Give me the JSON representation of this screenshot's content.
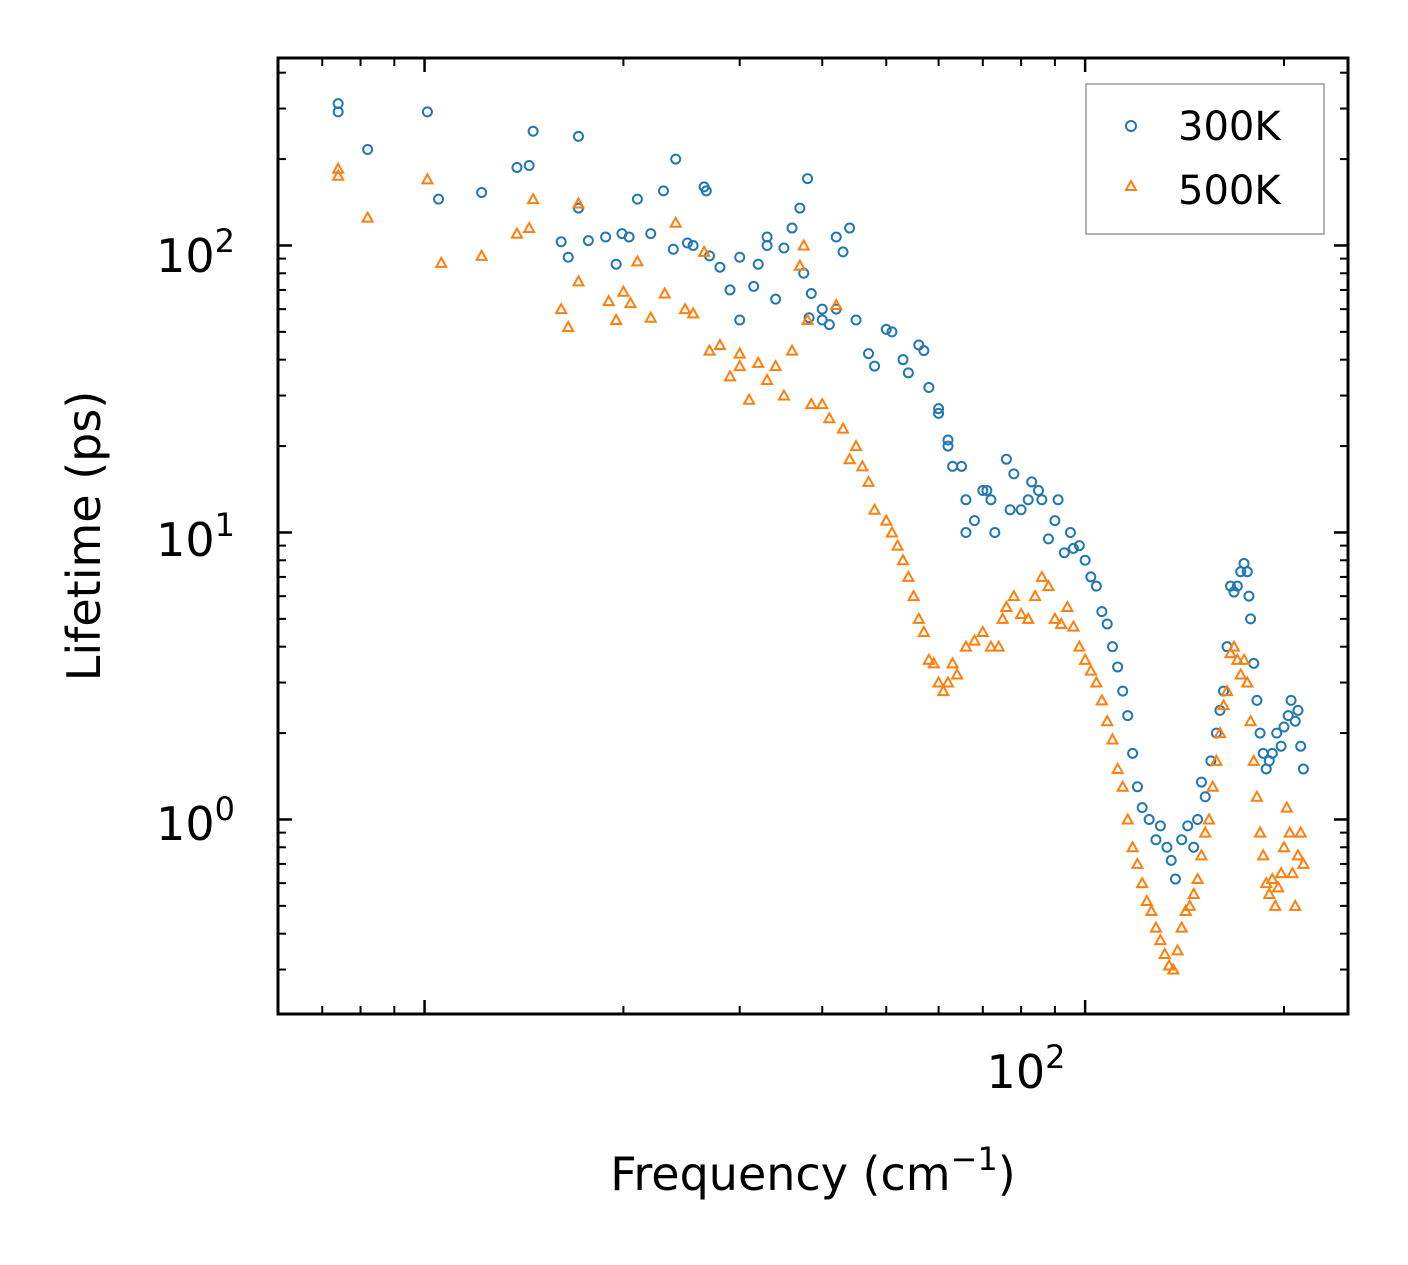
{
  "chart_data": {
    "type": "scatter",
    "xscale": "log",
    "yscale": "log",
    "xlim": [
      6,
      250
    ],
    "ylim": [
      0.21,
      450
    ],
    "xlabel": "Frequency (cm",
    "xlabel_sup": "−1",
    "xlabel_end": ")",
    "ylabel": "Lifetime (ps)",
    "x_major_ticks": [
      {
        "base": "10",
        "exp": "2",
        "value": 100
      }
    ],
    "y_major_ticks": [
      {
        "base": "10",
        "exp": "0",
        "value": 1
      },
      {
        "base": "10",
        "exp": "1",
        "value": 10
      },
      {
        "base": "10",
        "exp": "2",
        "value": 100
      }
    ],
    "legend_position": "top-right",
    "series": [
      {
        "name": "300K",
        "marker": "circle",
        "color": "#1f77b4",
        "points": [
          [
            7.4,
            312
          ],
          [
            7.4,
            292
          ],
          [
            8.2,
            216
          ],
          [
            10.1,
            292
          ],
          [
            10.5,
            145
          ],
          [
            12.2,
            153
          ],
          [
            13.8,
            187
          ],
          [
            14.4,
            190
          ],
          [
            14.6,
            250
          ],
          [
            16.1,
            103
          ],
          [
            16.5,
            91
          ],
          [
            17.1,
            135
          ],
          [
            17.1,
            240
          ],
          [
            17.7,
            104
          ],
          [
            18.8,
            107
          ],
          [
            19.5,
            86
          ],
          [
            19.9,
            110
          ],
          [
            20.4,
            107
          ],
          [
            21,
            145
          ],
          [
            22,
            110
          ],
          [
            23,
            155
          ],
          [
            23.8,
            97
          ],
          [
            24,
            200
          ],
          [
            25,
            102
          ],
          [
            25.5,
            100
          ],
          [
            26.5,
            160
          ],
          [
            26.7,
            155
          ],
          [
            27,
            92
          ],
          [
            28,
            84
          ],
          [
            29,
            70
          ],
          [
            30,
            91
          ],
          [
            30,
            55
          ],
          [
            31.5,
            72
          ],
          [
            32,
            86
          ],
          [
            33,
            100
          ],
          [
            33,
            107
          ],
          [
            34,
            65
          ],
          [
            35,
            98
          ],
          [
            36,
            115
          ],
          [
            37,
            135
          ],
          [
            37.5,
            80
          ],
          [
            38,
            171
          ],
          [
            38.2,
            56
          ],
          [
            38.5,
            68
          ],
          [
            40,
            60
          ],
          [
            40,
            55
          ],
          [
            41,
            53
          ],
          [
            42,
            60
          ],
          [
            42,
            107
          ],
          [
            43,
            95
          ],
          [
            44,
            115
          ],
          [
            45,
            55
          ],
          [
            47,
            42
          ],
          [
            48,
            38
          ],
          [
            50,
            51
          ],
          [
            51,
            50
          ],
          [
            53,
            40
          ],
          [
            54,
            36
          ],
          [
            56,
            45
          ],
          [
            57,
            43
          ],
          [
            58,
            32
          ],
          [
            60,
            26
          ],
          [
            60,
            27
          ],
          [
            62,
            21
          ],
          [
            62,
            20
          ],
          [
            63,
            17
          ],
          [
            65,
            17
          ],
          [
            66,
            13
          ],
          [
            66,
            10
          ],
          [
            68,
            11
          ],
          [
            70,
            14
          ],
          [
            71,
            14
          ],
          [
            72,
            13
          ],
          [
            73,
            10
          ],
          [
            76,
            18
          ],
          [
            77,
            12
          ],
          [
            78,
            16
          ],
          [
            80,
            12
          ],
          [
            82,
            13
          ],
          [
            83,
            15
          ],
          [
            85,
            14
          ],
          [
            86,
            13
          ],
          [
            88,
            9.5
          ],
          [
            90,
            11
          ],
          [
            91,
            13
          ],
          [
            93,
            8.5
          ],
          [
            95,
            10
          ],
          [
            96,
            8.8
          ],
          [
            98,
            9
          ],
          [
            100,
            8
          ],
          [
            102,
            7
          ],
          [
            104,
            6.5
          ],
          [
            106,
            5.3
          ],
          [
            108,
            4.8
          ],
          [
            110,
            4
          ],
          [
            112,
            3.4
          ],
          [
            114,
            2.8
          ],
          [
            116,
            2.3
          ],
          [
            118,
            1.7
          ],
          [
            120,
            1.3
          ],
          [
            122,
            1.1
          ],
          [
            125,
            1
          ],
          [
            128,
            0.85
          ],
          [
            130,
            0.95
          ],
          [
            133,
            0.8
          ],
          [
            135,
            0.72
          ],
          [
            137,
            0.62
          ],
          [
            140,
            0.85
          ],
          [
            143,
            0.95
          ],
          [
            146,
            0.8
          ],
          [
            148,
            1
          ],
          [
            150,
            1.35
          ],
          [
            152,
            1.2
          ],
          [
            155,
            1.6
          ],
          [
            158,
            2
          ],
          [
            160,
            2.4
          ],
          [
            162,
            2.8
          ],
          [
            164,
            4
          ],
          [
            166,
            6.5
          ],
          [
            168,
            6.2
          ],
          [
            170,
            6.5
          ],
          [
            172,
            7.3
          ],
          [
            174,
            7.8
          ],
          [
            176,
            7.3
          ],
          [
            177,
            6
          ],
          [
            178,
            5
          ],
          [
            180,
            3.5
          ],
          [
            182,
            2.6
          ],
          [
            184,
            2
          ],
          [
            186,
            1.7
          ],
          [
            188,
            1.5
          ],
          [
            190,
            1.6
          ],
          [
            192,
            1.7
          ],
          [
            195,
            2
          ],
          [
            198,
            1.8
          ],
          [
            200,
            2.1
          ],
          [
            203,
            2.3
          ],
          [
            205,
            2.6
          ],
          [
            208,
            2.2
          ],
          [
            210,
            2.4
          ],
          [
            212,
            1.8
          ],
          [
            214,
            1.5
          ]
        ]
      },
      {
        "name": "500K",
        "marker": "triangle",
        "color": "#ff7f0e",
        "points": [
          [
            7.4,
            185
          ],
          [
            7.4,
            175
          ],
          [
            8.2,
            125
          ],
          [
            10.1,
            170
          ],
          [
            10.6,
            87
          ],
          [
            12.2,
            92
          ],
          [
            13.8,
            110
          ],
          [
            14.4,
            115
          ],
          [
            14.6,
            145
          ],
          [
            16.1,
            60
          ],
          [
            16.5,
            52
          ],
          [
            17.1,
            75
          ],
          [
            17.1,
            140
          ],
          [
            19,
            64
          ],
          [
            19.5,
            55
          ],
          [
            20,
            69
          ],
          [
            20.5,
            63
          ],
          [
            21,
            88
          ],
          [
            22,
            56
          ],
          [
            23.1,
            68
          ],
          [
            24,
            120
          ],
          [
            24.8,
            60
          ],
          [
            25.5,
            58
          ],
          [
            26.5,
            95
          ],
          [
            27,
            43
          ],
          [
            28,
            45
          ],
          [
            29,
            35
          ],
          [
            30,
            38
          ],
          [
            30,
            42
          ],
          [
            31,
            29
          ],
          [
            32,
            39
          ],
          [
            33,
            34
          ],
          [
            34,
            38
          ],
          [
            35,
            30
          ],
          [
            36,
            43
          ],
          [
            37,
            85
          ],
          [
            37.5,
            100
          ],
          [
            38,
            55
          ],
          [
            38.5,
            28
          ],
          [
            40,
            28
          ],
          [
            41,
            25
          ],
          [
            42,
            62
          ],
          [
            43,
            23
          ],
          [
            44,
            18
          ],
          [
            45,
            20
          ],
          [
            46,
            17
          ],
          [
            47,
            15
          ],
          [
            48,
            12
          ],
          [
            50,
            11
          ],
          [
            51,
            10
          ],
          [
            52,
            9
          ],
          [
            53,
            8
          ],
          [
            54,
            7
          ],
          [
            55,
            6
          ],
          [
            56,
            5
          ],
          [
            57,
            4.5
          ],
          [
            58,
            3.6
          ],
          [
            59,
            3.5
          ],
          [
            60,
            3
          ],
          [
            61,
            2.8
          ],
          [
            62,
            3
          ],
          [
            63,
            3.5
          ],
          [
            64,
            3.2
          ],
          [
            66,
            4
          ],
          [
            68,
            4.2
          ],
          [
            70,
            4.5
          ],
          [
            72,
            4
          ],
          [
            74,
            4
          ],
          [
            75,
            5
          ],
          [
            76,
            5.5
          ],
          [
            78,
            6
          ],
          [
            80,
            5.2
          ],
          [
            82,
            5
          ],
          [
            84,
            6
          ],
          [
            86,
            7
          ],
          [
            88,
            6.5
          ],
          [
            90,
            5
          ],
          [
            92,
            4.8
          ],
          [
            94,
            5.5
          ],
          [
            96,
            4.7
          ],
          [
            98,
            4
          ],
          [
            100,
            3.6
          ],
          [
            102,
            3.3
          ],
          [
            104,
            3
          ],
          [
            106,
            2.6
          ],
          [
            108,
            2.2
          ],
          [
            110,
            1.9
          ],
          [
            112,
            1.5
          ],
          [
            114,
            1.3
          ],
          [
            116,
            1
          ],
          [
            118,
            0.8
          ],
          [
            120,
            0.7
          ],
          [
            122,
            0.6
          ],
          [
            124,
            0.52
          ],
          [
            126,
            0.48
          ],
          [
            128,
            0.42
          ],
          [
            130,
            0.38
          ],
          [
            132,
            0.34
          ],
          [
            134,
            0.31
          ],
          [
            136,
            0.3
          ],
          [
            138,
            0.35
          ],
          [
            140,
            0.42
          ],
          [
            142,
            0.48
          ],
          [
            144,
            0.5
          ],
          [
            146,
            0.55
          ],
          [
            148,
            0.62
          ],
          [
            150,
            0.75
          ],
          [
            152,
            0.9
          ],
          [
            154,
            1
          ],
          [
            156,
            1.3
          ],
          [
            158,
            1.6
          ],
          [
            160,
            2
          ],
          [
            162,
            2.5
          ],
          [
            164,
            2.8
          ],
          [
            166,
            3.8
          ],
          [
            168,
            4
          ],
          [
            170,
            3.6
          ],
          [
            172,
            3.2
          ],
          [
            174,
            3.6
          ],
          [
            176,
            3
          ],
          [
            178,
            2.2
          ],
          [
            180,
            1.6
          ],
          [
            182,
            1.2
          ],
          [
            184,
            0.9
          ],
          [
            186,
            0.75
          ],
          [
            188,
            0.6
          ],
          [
            190,
            0.55
          ],
          [
            192,
            0.62
          ],
          [
            194,
            0.5
          ],
          [
            196,
            0.58
          ],
          [
            198,
            0.65
          ],
          [
            200,
            0.8
          ],
          [
            202,
            1.1
          ],
          [
            204,
            0.9
          ],
          [
            206,
            0.65
          ],
          [
            208,
            0.5
          ],
          [
            210,
            0.75
          ],
          [
            212,
            0.9
          ],
          [
            214,
            0.7
          ]
        ]
      }
    ]
  }
}
